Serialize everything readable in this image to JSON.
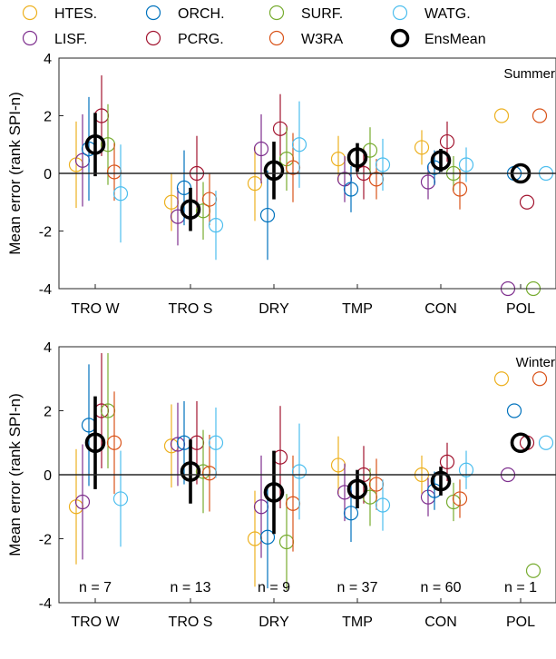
{
  "legend": [
    {
      "name": "HTES.",
      "color": "#EDB120"
    },
    {
      "name": "ORCH.",
      "color": "#0072BD"
    },
    {
      "name": "SURF.",
      "color": "#77AC30"
    },
    {
      "name": "WATG.",
      "color": "#4DBEEE"
    },
    {
      "name": "LISF.",
      "color": "#7E2F8E"
    },
    {
      "name": "PCRG.",
      "color": "#A2142F"
    },
    {
      "name": "W3RA",
      "color": "#D95319"
    },
    {
      "name": "EnsMean",
      "color": "#000000"
    }
  ],
  "chart_data": [
    {
      "type": "scatter",
      "title": "Summer",
      "ylabel": "Mean error (rank SPI-n)",
      "ylim": [
        -4,
        4
      ],
      "yticks": [
        "-4",
        "-2",
        "0",
        "2",
        "4"
      ],
      "categories": [
        "TRO W",
        "TRO S",
        "DRY",
        "TMP",
        "CON",
        "POL"
      ],
      "series": [
        {
          "name": "HTES.",
          "values": [
            0.3,
            -1.0,
            -0.35,
            0.5,
            0.9,
            2.0
          ],
          "err": [
            1.5,
            1.0,
            1.3,
            0.8,
            0.6,
            null
          ]
        },
        {
          "name": "LISF.",
          "values": [
            0.45,
            -1.5,
            0.85,
            -0.2,
            -0.3,
            -4.0
          ],
          "err": [
            1.6,
            1.0,
            1.2,
            0.8,
            0.6,
            null
          ]
        },
        {
          "name": "ORCH.",
          "values": [
            0.85,
            -0.5,
            -1.45,
            -0.55,
            0.2,
            0.0
          ],
          "err": [
            1.8,
            1.3,
            1.55,
            0.8,
            0.6,
            null
          ]
        },
        {
          "name": "PCRG.",
          "values": [
            2.0,
            0.0,
            1.55,
            0.0,
            1.1,
            -1.0
          ],
          "err": [
            1.4,
            1.3,
            1.2,
            0.9,
            0.7,
            null
          ]
        },
        {
          "name": "SURF.",
          "values": [
            1.0,
            -1.3,
            0.5,
            0.8,
            0.0,
            -4.0
          ],
          "err": [
            1.4,
            1.0,
            1.1,
            0.8,
            0.6,
            null
          ]
        },
        {
          "name": "W3RA",
          "values": [
            0.05,
            -0.9,
            0.2,
            -0.2,
            -0.55,
            2.0
          ],
          "err": [
            1.0,
            0.9,
            1.2,
            0.7,
            0.7,
            null
          ]
        },
        {
          "name": "WATG.",
          "values": [
            -0.7,
            -1.8,
            1.0,
            0.3,
            0.3,
            0.0
          ],
          "err": [
            1.7,
            1.2,
            1.5,
            0.9,
            0.6,
            null
          ]
        }
      ],
      "ens_mean": {
        "name": "EnsMean",
        "values": [
          1.0,
          -1.25,
          0.1,
          0.55,
          0.45,
          0.0
        ],
        "err": [
          1.1,
          0.75,
          1.0,
          0.5,
          0.4,
          null
        ]
      }
    },
    {
      "type": "scatter",
      "title": "Winter",
      "ylabel": "Mean error (rank SPI-n)",
      "ylim": [
        -4,
        4
      ],
      "yticks": [
        "-4",
        "-2",
        "0",
        "2",
        "4"
      ],
      "categories": [
        "TRO W",
        "TRO S",
        "DRY",
        "TMP",
        "CON",
        "POL"
      ],
      "counts": [
        "n = 7",
        "n = 13",
        "n = 9",
        "n = 37",
        "n = 60",
        "n = 1"
      ],
      "series": [
        {
          "name": "HTES.",
          "values": [
            -1.0,
            0.9,
            -2.0,
            0.3,
            0.0,
            3.0
          ],
          "err": [
            1.8,
            1.3,
            1.5,
            0.9,
            0.6,
            null
          ]
        },
        {
          "name": "LISF.",
          "values": [
            -0.85,
            0.95,
            -1.0,
            -0.55,
            -0.7,
            0.0
          ],
          "err": [
            1.8,
            1.3,
            1.6,
            0.9,
            0.6,
            null
          ]
        },
        {
          "name": "ORCH.",
          "values": [
            1.55,
            1.0,
            -1.95,
            -1.2,
            -0.5,
            2.0
          ],
          "err": [
            1.9,
            1.3,
            1.6,
            0.9,
            0.6,
            null
          ]
        },
        {
          "name": "PCRG.",
          "values": [
            2.0,
            1.0,
            0.55,
            0.0,
            0.4,
            1.0
          ],
          "err": [
            1.8,
            1.3,
            1.6,
            0.9,
            0.6,
            null
          ]
        },
        {
          "name": "SURF.",
          "values": [
            2.0,
            0.1,
            -2.1,
            -0.7,
            -0.85,
            -3.0
          ],
          "err": [
            1.8,
            1.3,
            1.5,
            0.9,
            0.6,
            null
          ]
        },
        {
          "name": "W3RA",
          "values": [
            1.0,
            0.05,
            -0.9,
            -0.3,
            -0.75,
            3.0
          ],
          "err": [
            1.6,
            1.2,
            1.5,
            0.8,
            0.6,
            null
          ]
        },
        {
          "name": "WATG.",
          "values": [
            -0.75,
            1.0,
            0.1,
            -0.95,
            0.15,
            1.0
          ],
          "err": [
            1.5,
            1.1,
            1.5,
            0.8,
            0.6,
            null
          ]
        }
      ],
      "ens_mean": {
        "name": "EnsMean",
        "values": [
          1.0,
          0.1,
          -0.55,
          -0.45,
          -0.2,
          1.0
        ],
        "err": [
          1.45,
          1.0,
          1.3,
          0.6,
          0.45,
          null
        ]
      }
    }
  ]
}
